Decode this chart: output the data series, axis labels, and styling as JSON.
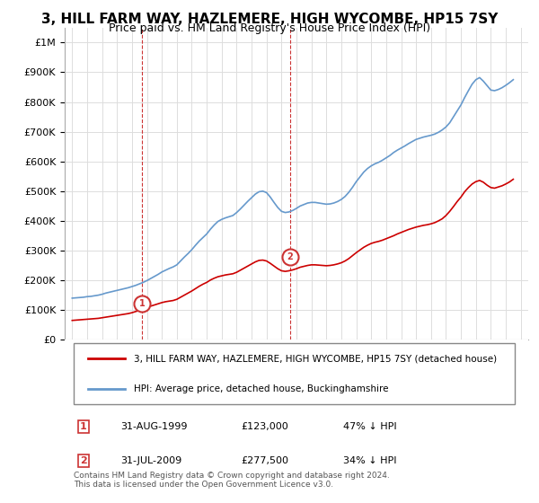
{
  "title": "3, HILL FARM WAY, HAZLEMERE, HIGH WYCOMBE, HP15 7SY",
  "subtitle": "Price paid vs. HM Land Registry's House Price Index (HPI)",
  "title_fontsize": 11,
  "subtitle_fontsize": 9,
  "red_color": "#cc0000",
  "blue_color": "#6699cc",
  "annotation_box_color": "#cc3333",
  "dashed_line_color": "#cc3333",
  "grid_color": "#dddddd",
  "bg_color": "#ffffff",
  "legend_line1": "3, HILL FARM WAY, HAZLEMERE, HIGH WYCOMBE, HP15 7SY (detached house)",
  "legend_line2": "HPI: Average price, detached house, Buckinghamshire",
  "footer": "Contains HM Land Registry data © Crown copyright and database right 2024.\nThis data is licensed under the Open Government Licence v3.0.",
  "point1_label": "1",
  "point1_date": "31-AUG-1999",
  "point1_price": "£123,000",
  "point1_hpi": "47% ↓ HPI",
  "point1_x": 1999.67,
  "point1_y": 123000,
  "point2_label": "2",
  "point2_date": "31-JUL-2009",
  "point2_price": "£277,500",
  "point2_hpi": "34% ↓ HPI",
  "point2_x": 2009.58,
  "point2_y": 277500,
  "ylim": [
    0,
    1050000
  ],
  "xlim_start": 1994.5,
  "xlim_end": 2025.5,
  "hpi_years": [
    1995,
    1995.25,
    1995.5,
    1995.75,
    1996,
    1996.25,
    1996.5,
    1996.75,
    1997,
    1997.25,
    1997.5,
    1997.75,
    1998,
    1998.25,
    1998.5,
    1998.75,
    1999,
    1999.25,
    1999.5,
    1999.75,
    2000,
    2000.25,
    2000.5,
    2000.75,
    2001,
    2001.25,
    2001.5,
    2001.75,
    2002,
    2002.25,
    2002.5,
    2002.75,
    2003,
    2003.25,
    2003.5,
    2003.75,
    2004,
    2004.25,
    2004.5,
    2004.75,
    2005,
    2005.25,
    2005.5,
    2005.75,
    2006,
    2006.25,
    2006.5,
    2006.75,
    2007,
    2007.25,
    2007.5,
    2007.75,
    2008,
    2008.25,
    2008.5,
    2008.75,
    2009,
    2009.25,
    2009.5,
    2009.75,
    2010,
    2010.25,
    2010.5,
    2010.75,
    2011,
    2011.25,
    2011.5,
    2011.75,
    2012,
    2012.25,
    2012.5,
    2012.75,
    2013,
    2013.25,
    2013.5,
    2013.75,
    2014,
    2014.25,
    2014.5,
    2014.75,
    2015,
    2015.25,
    2015.5,
    2015.75,
    2016,
    2016.25,
    2016.5,
    2016.75,
    2017,
    2017.25,
    2017.5,
    2017.75,
    2018,
    2018.25,
    2018.5,
    2018.75,
    2019,
    2019.25,
    2019.5,
    2019.75,
    2020,
    2020.25,
    2020.5,
    2020.75,
    2021,
    2021.25,
    2021.5,
    2021.75,
    2022,
    2022.25,
    2022.5,
    2022.75,
    2023,
    2023.25,
    2023.5,
    2023.75,
    2024,
    2024.25,
    2024.5
  ],
  "hpi_values": [
    140000,
    141000,
    142000,
    143000,
    145000,
    146000,
    148000,
    150000,
    153000,
    157000,
    160000,
    163000,
    166000,
    169000,
    172000,
    175000,
    179000,
    183000,
    188000,
    193000,
    199000,
    206000,
    213000,
    220000,
    228000,
    234000,
    240000,
    245000,
    252000,
    265000,
    278000,
    290000,
    303000,
    318000,
    332000,
    344000,
    356000,
    372000,
    386000,
    398000,
    405000,
    410000,
    414000,
    418000,
    428000,
    440000,
    453000,
    466000,
    478000,
    490000,
    498000,
    500000,
    495000,
    480000,
    462000,
    445000,
    432000,
    428000,
    430000,
    435000,
    442000,
    450000,
    455000,
    460000,
    462000,
    462000,
    460000,
    458000,
    456000,
    457000,
    460000,
    465000,
    472000,
    482000,
    496000,
    513000,
    532000,
    548000,
    564000,
    576000,
    585000,
    592000,
    597000,
    604000,
    612000,
    620000,
    630000,
    638000,
    645000,
    652000,
    660000,
    667000,
    674000,
    678000,
    682000,
    685000,
    688000,
    692000,
    698000,
    706000,
    716000,
    730000,
    750000,
    770000,
    790000,
    815000,
    838000,
    860000,
    875000,
    882000,
    870000,
    855000,
    840000,
    838000,
    842000,
    848000,
    856000,
    865000,
    875000
  ],
  "red_years": [
    1995,
    1995.25,
    1995.5,
    1995.75,
    1996,
    1996.25,
    1996.5,
    1996.75,
    1997,
    1997.25,
    1997.5,
    1997.75,
    1998,
    1998.25,
    1998.5,
    1998.75,
    1999,
    1999.25,
    1999.5,
    1999.75,
    2000,
    2000.25,
    2000.5,
    2000.75,
    2001,
    2001.25,
    2001.5,
    2001.75,
    2002,
    2002.25,
    2002.5,
    2002.75,
    2003,
    2003.25,
    2003.5,
    2003.75,
    2004,
    2004.25,
    2004.5,
    2004.75,
    2005,
    2005.25,
    2005.5,
    2005.75,
    2006,
    2006.25,
    2006.5,
    2006.75,
    2007,
    2007.25,
    2007.5,
    2007.75,
    2008,
    2008.25,
    2008.5,
    2008.75,
    2009,
    2009.25,
    2009.5,
    2009.75,
    2010,
    2010.25,
    2010.5,
    2010.75,
    2011,
    2011.25,
    2011.5,
    2011.75,
    2012,
    2012.25,
    2012.5,
    2012.75,
    2013,
    2013.25,
    2013.5,
    2013.75,
    2014,
    2014.25,
    2014.5,
    2014.75,
    2015,
    2015.25,
    2015.5,
    2015.75,
    2016,
    2016.25,
    2016.5,
    2016.75,
    2017,
    2017.25,
    2017.5,
    2017.75,
    2018,
    2018.25,
    2018.5,
    2018.75,
    2019,
    2019.25,
    2019.5,
    2019.75,
    2020,
    2020.25,
    2020.5,
    2020.75,
    2021,
    2021.25,
    2021.5,
    2021.75,
    2022,
    2022.25,
    2022.5,
    2022.75,
    2023,
    2023.25,
    2023.5,
    2023.75,
    2024,
    2024.25,
    2024.5
  ],
  "red_values": [
    65000,
    66000,
    67000,
    68000,
    69000,
    70000,
    71000,
    72000,
    74000,
    76000,
    78000,
    80000,
    82000,
    84000,
    86000,
    88000,
    91000,
    95000,
    99000,
    103000,
    108000,
    113000,
    117000,
    121000,
    125000,
    128000,
    130000,
    132000,
    136000,
    143000,
    150000,
    157000,
    164000,
    172000,
    180000,
    187000,
    193000,
    201000,
    207000,
    212000,
    215000,
    218000,
    220000,
    222000,
    227000,
    234000,
    241000,
    248000,
    255000,
    262000,
    267000,
    268000,
    265000,
    257000,
    248000,
    239000,
    232000,
    230000,
    232000,
    235000,
    239000,
    244000,
    247000,
    250000,
    252000,
    252000,
    251000,
    250000,
    249000,
    250000,
    252000,
    255000,
    259000,
    265000,
    273000,
    283000,
    293000,
    302000,
    311000,
    318000,
    324000,
    328000,
    331000,
    335000,
    340000,
    345000,
    350000,
    356000,
    361000,
    366000,
    371000,
    375000,
    379000,
    382000,
    385000,
    387000,
    390000,
    394000,
    400000,
    407000,
    418000,
    432000,
    448000,
    465000,
    480000,
    498000,
    512000,
    524000,
    532000,
    536000,
    530000,
    520000,
    512000,
    510000,
    514000,
    518000,
    524000,
    531000,
    540000
  ]
}
